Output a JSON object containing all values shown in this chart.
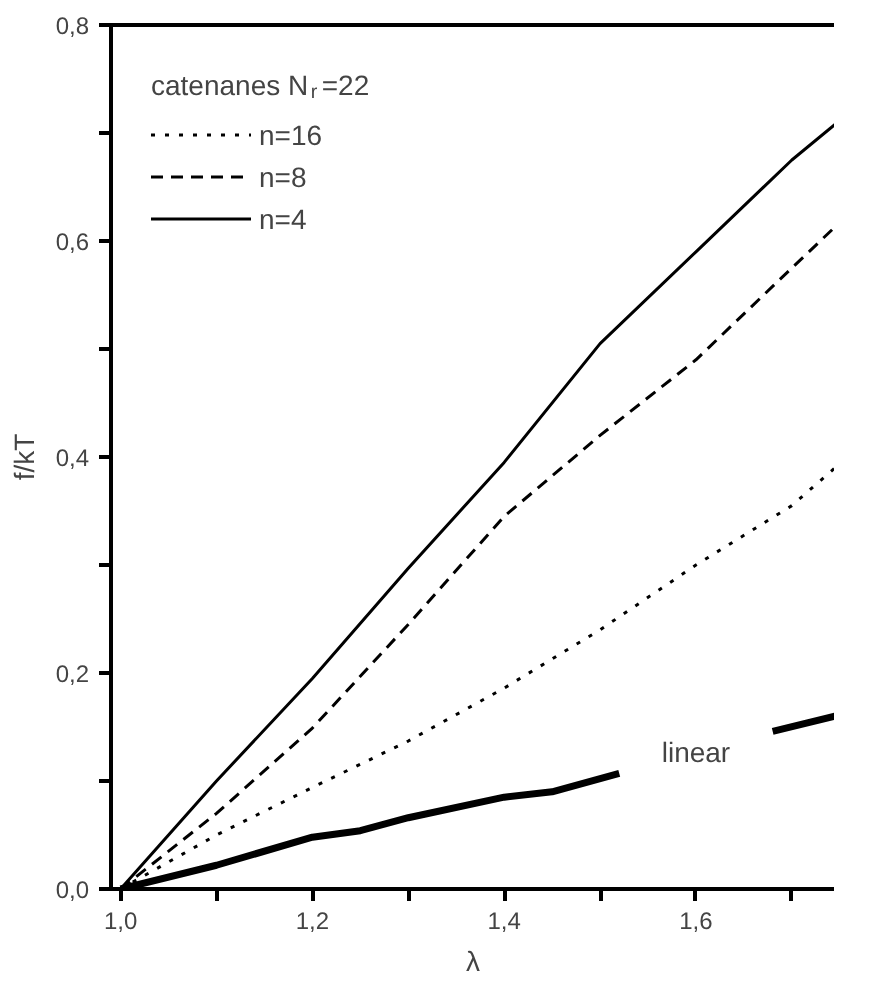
{
  "chart_data": {
    "type": "line",
    "xlabel": "λ",
    "ylabel": "f/kT",
    "legend_title": "catenanes N$_{r}$=22",
    "legend": "top left",
    "grid": false,
    "x": [
      1.0,
      1.1,
      1.2,
      1.3,
      1.4,
      1.5,
      1.6,
      1.7,
      1.745
    ],
    "xlim": [
      0.99,
      1.745
    ],
    "ylim": [
      0,
      0.8
    ],
    "xticks": [
      {
        "value": 1.0,
        "label": "1,0"
      },
      {
        "value": 1.1,
        "label": null
      },
      {
        "value": 1.2,
        "label": "1,2"
      },
      {
        "value": 1.3,
        "label": null
      },
      {
        "value": 1.4,
        "label": "1,4"
      },
      {
        "value": 1.5,
        "label": null
      },
      {
        "value": 1.6,
        "label": "1,6"
      },
      {
        "value": 1.7,
        "label": null
      }
    ],
    "yticks": [
      {
        "value": 0,
        "label": "0,0"
      },
      {
        "value": 0.1,
        "label": null
      },
      {
        "value": 0.2,
        "label": "0,2"
      },
      {
        "value": 0.3,
        "label": null
      },
      {
        "value": 0.4,
        "label": "0,4"
      },
      {
        "value": 0.5,
        "label": null
      },
      {
        "value": 0.6,
        "label": "0,6"
      },
      {
        "value": 0.7,
        "label": null
      },
      {
        "value": 0.8,
        "label": "0,8"
      }
    ],
    "series": [
      {
        "name": "n=16",
        "color": "#000000",
        "line_style": "dotted",
        "values": [
          0,
          0.05,
          0.094,
          0.137,
          0.186,
          0.24,
          0.3,
          0.355,
          0.39
        ]
      },
      {
        "name": "n=8",
        "color": "#000000",
        "line_style": "dashed",
        "values": [
          0,
          0.07,
          0.149,
          0.245,
          0.345,
          0.42,
          0.49,
          0.575,
          0.613
        ]
      },
      {
        "name": "n=4",
        "color": "#000000",
        "line_style": "solid",
        "values": [
          0,
          0.1,
          0.195,
          0.297,
          0.395,
          0.505,
          0.59,
          0.675,
          0.708
        ]
      },
      {
        "color": "#000000",
        "line_style": "solid",
        "x": [
          1.0,
          1.1,
          1.2,
          1.25,
          1.3,
          1.4,
          1.45,
          1.52,
          1.6,
          1.68,
          1.745
        ],
        "values": [
          0,
          0.022,
          0.048,
          0.054,
          0.066,
          0.085,
          0.09,
          0.107,
          null,
          0.146,
          0.16
        ]
      }
    ],
    "annotations": [
      "linear"
    ]
  }
}
